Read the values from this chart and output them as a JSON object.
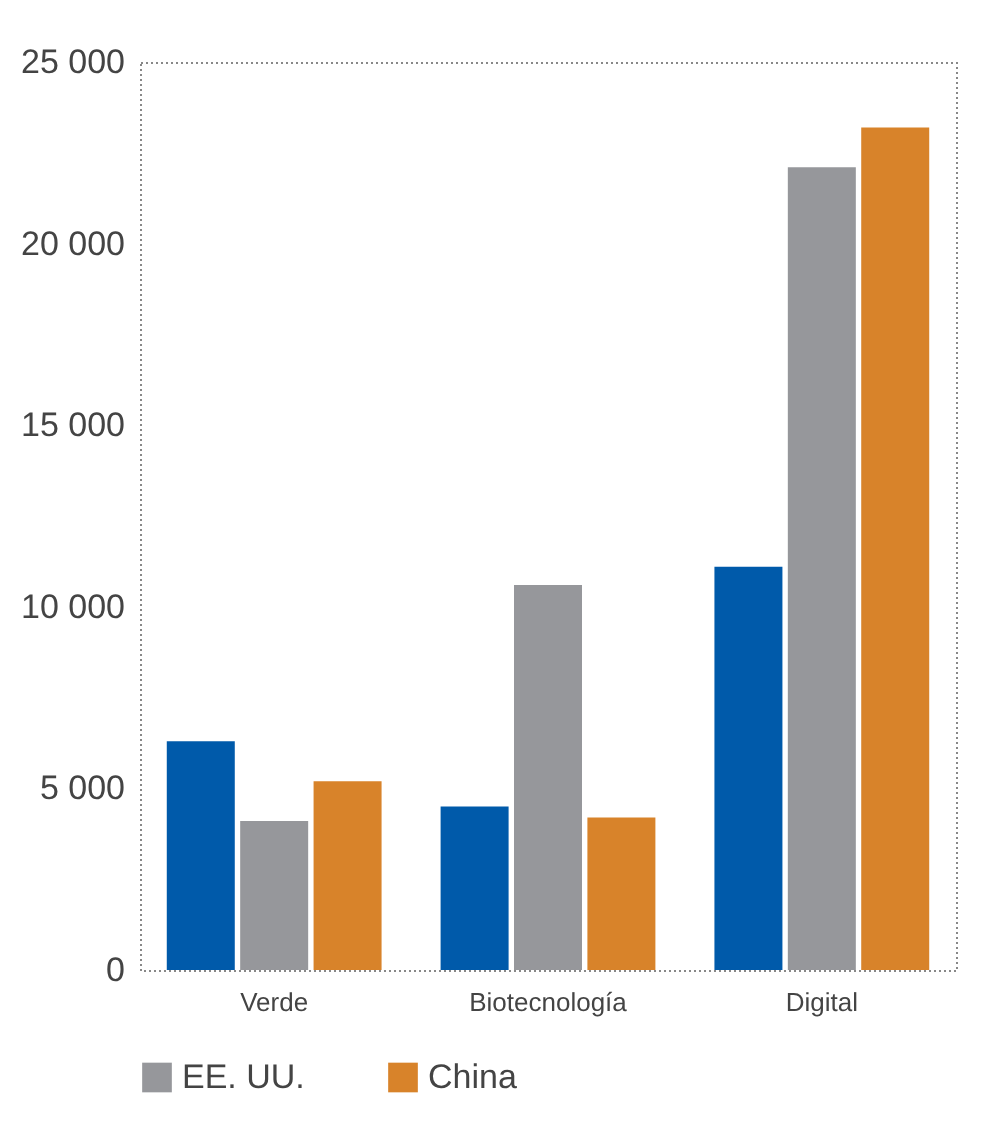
{
  "chart_data": {
    "type": "bar",
    "categories": [
      "Verde",
      "Biotecnología",
      "Digital"
    ],
    "series": [
      {
        "color": "#005aaa",
        "values": [
          6300,
          4500,
          11100
        ]
      },
      {
        "name": "EE. UU.",
        "color": "#96979b",
        "values": [
          4100,
          10600,
          22100
        ]
      },
      {
        "name": "China",
        "color": "#d8832a",
        "values": [
          5200,
          4200,
          23200
        ]
      }
    ],
    "ylim": [
      0,
      25000
    ],
    "yticks": [
      {
        "value": 0,
        "label": "0"
      },
      {
        "value": 5000,
        "label": "5 000"
      },
      {
        "value": 10000,
        "label": "10 000"
      },
      {
        "value": 15000,
        "label": "15 000"
      },
      {
        "value": 20000,
        "label": "20 000"
      },
      {
        "value": 25000,
        "label": "25 000"
      }
    ],
    "grid": false,
    "legend": "bottom"
  }
}
